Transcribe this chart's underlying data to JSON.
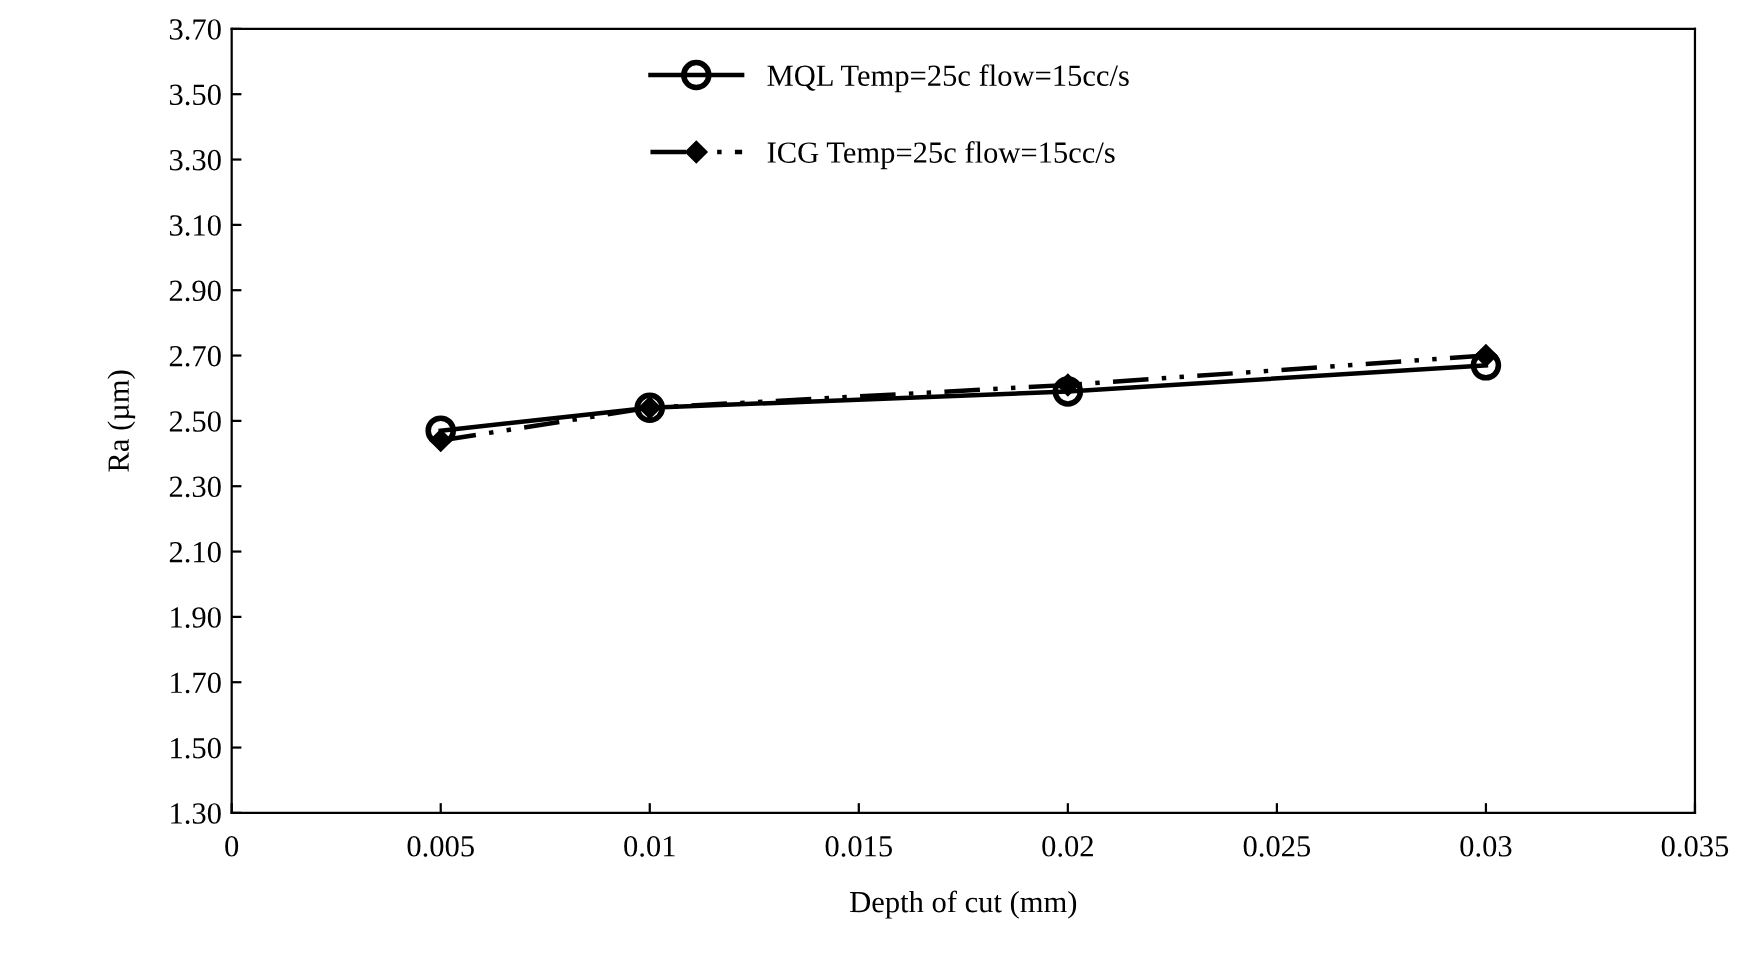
{
  "chart_data": {
    "type": "line",
    "xlabel": "Depth of cut (mm)",
    "ylabel": "Ra (µm)",
    "x": [
      0.005,
      0.01,
      0.02,
      0.03
    ],
    "series": [
      {
        "name": "MQL Temp=25c flow=15cc/s",
        "color": "#000000",
        "values": [
          2.47,
          2.54,
          2.59,
          2.67
        ],
        "marker": "circle",
        "line_style": "solid"
      },
      {
        "name": "ICG Temp=25c flow=15cc/s",
        "color": "#000000",
        "values": [
          2.44,
          2.54,
          2.61,
          2.7
        ],
        "marker": "diamond",
        "line_style": "dashdot"
      }
    ],
    "xlim": [
      0,
      0.035
    ],
    "xticks": [
      0,
      0.005,
      0.01,
      0.015,
      0.02,
      0.025,
      0.03,
      0.035
    ],
    "ylim": [
      1.3,
      3.7
    ],
    "yticks": [
      {
        "value": 1.3,
        "label": "1.30"
      },
      {
        "value": 1.5,
        "label": "1.50"
      },
      {
        "value": 1.7,
        "label": "1.70"
      },
      {
        "value": 1.9,
        "label": "1.90"
      },
      {
        "value": 2.1,
        "label": "2.10"
      },
      {
        "value": 2.3,
        "label": "2.30"
      },
      {
        "value": 2.5,
        "label": "2.50"
      },
      {
        "value": 2.7,
        "label": "2.70"
      },
      {
        "value": 2.9,
        "label": "2.90"
      },
      {
        "value": 3.1,
        "label": "3.10"
      },
      {
        "value": 3.3,
        "label": "3.30"
      },
      {
        "value": 3.5,
        "label": "3.50"
      },
      {
        "value": 3.7,
        "label": "3.70"
      }
    ],
    "grid": false,
    "legend": "top"
  }
}
